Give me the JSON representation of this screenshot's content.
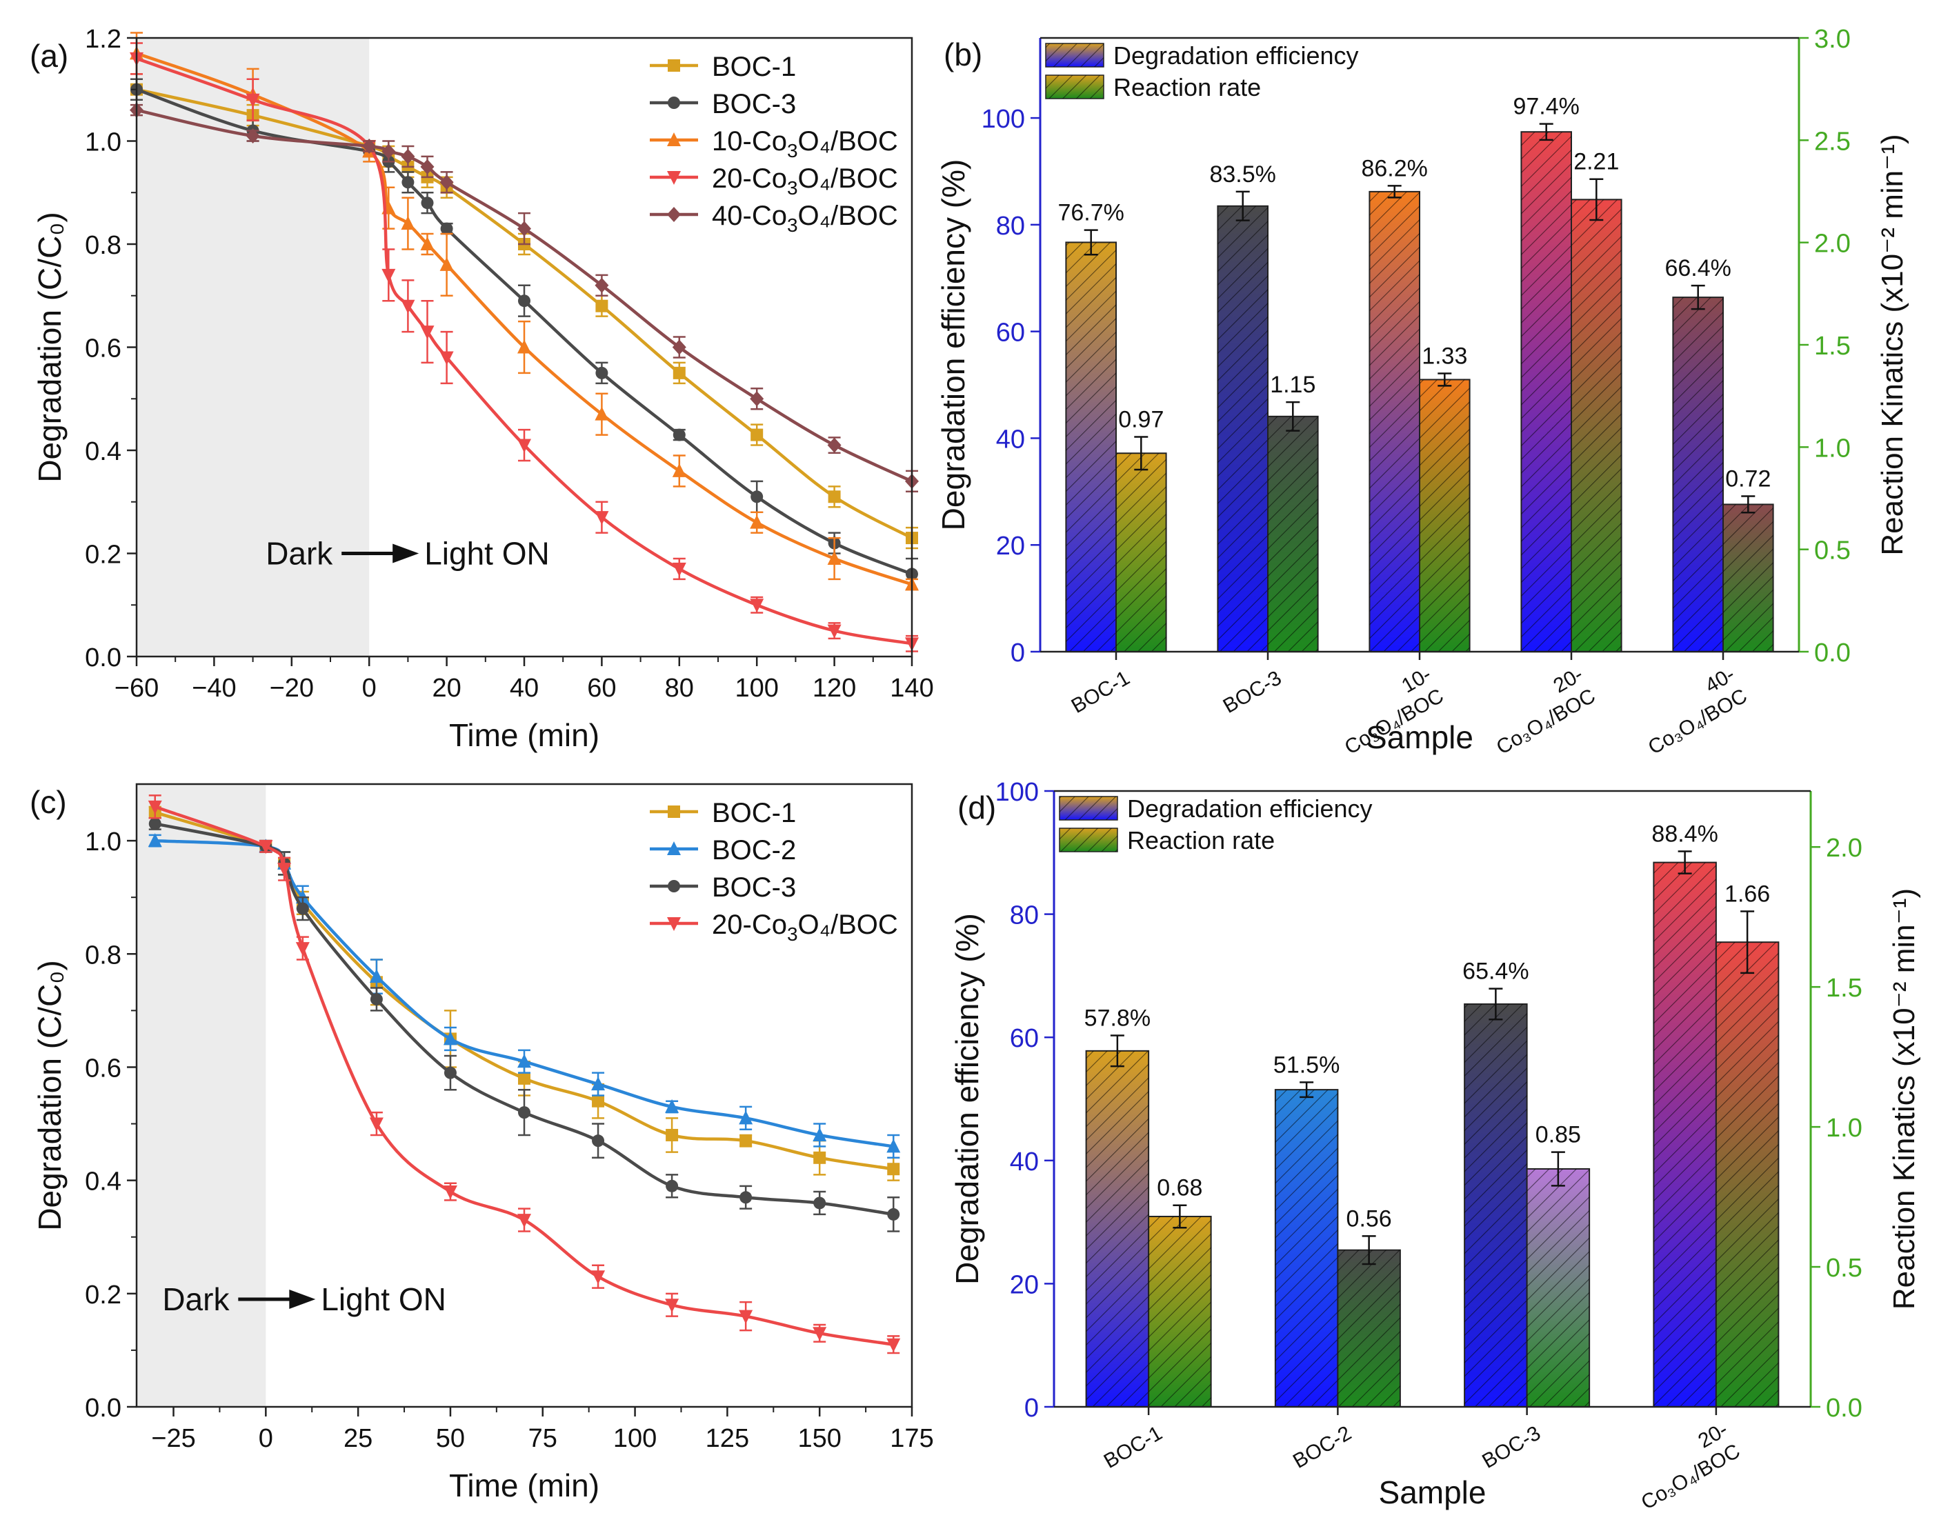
{
  "figure": {
    "panel_labels": [
      "(a)",
      "(b)",
      "(c)",
      "(d)"
    ]
  },
  "colors": {
    "BOC-1": "#d8a020",
    "BOC-2": "#2a86d8",
    "BOC-3": "#4a4a4a",
    "10-Co3O4/BOC": "#f27c1e",
    "20-Co3O4/BOC": "#ec4848",
    "40-Co3O4/BOC": "#8a4a4e",
    "shade": "#ececec",
    "left_axis_b": "#2222cc",
    "right_axis_b": "#44aa22"
  },
  "chart_data": [
    {
      "id": "a",
      "type": "line",
      "title": "",
      "panel_label": "(a)",
      "xlabel": "Time (min)",
      "ylabel": "Degradation (C/C₀)",
      "xlim": [
        -60,
        140
      ],
      "ylim": [
        0.0,
        1.2
      ],
      "xticks": [
        -60,
        -40,
        -20,
        0,
        20,
        40,
        60,
        80,
        100,
        120,
        140
      ],
      "xtick_labels": [
        "−60",
        "−40",
        "−20",
        "0",
        "20",
        "40",
        "60",
        "80",
        "100",
        "120",
        "140"
      ],
      "yticks": [
        0.0,
        0.2,
        0.4,
        0.6,
        0.8,
        1.0,
        1.2
      ],
      "ytick_labels": [
        "0.0",
        "0.2",
        "0.4",
        "0.6",
        "0.8",
        "1.0",
        "1.2"
      ],
      "shaded_region": [
        -60,
        0
      ],
      "annotation": {
        "left": "Dark",
        "right": "Light ON",
        "x": 0,
        "y": 0.2
      },
      "legend": "top-right",
      "series": [
        {
          "name": "BOC-1",
          "label_main": "BOC-1",
          "label_sub": "",
          "label_tail": "",
          "color_key": "BOC-1",
          "marker": "square",
          "x": [
            -60,
            -30,
            0,
            5,
            10,
            15,
            20,
            40,
            60,
            80,
            100,
            120,
            140
          ],
          "y": [
            1.1,
            1.05,
            0.99,
            0.97,
            0.95,
            0.93,
            0.91,
            0.8,
            0.68,
            0.55,
            0.43,
            0.31,
            0.23
          ],
          "err": [
            0.02,
            0.02,
            0.01,
            0.02,
            0.02,
            0.02,
            0.02,
            0.02,
            0.02,
            0.02,
            0.02,
            0.02,
            0.02
          ]
        },
        {
          "name": "BOC-3",
          "label_main": "BOC-3",
          "label_sub": "",
          "label_tail": "",
          "color_key": "BOC-3",
          "marker": "circle",
          "x": [
            -60,
            -30,
            0,
            5,
            10,
            15,
            20,
            40,
            60,
            80,
            100,
            120,
            140
          ],
          "y": [
            1.1,
            1.02,
            0.98,
            0.96,
            0.92,
            0.88,
            0.83,
            0.69,
            0.55,
            0.43,
            0.31,
            0.22,
            0.16
          ],
          "err": [
            0.02,
            0.02,
            0.01,
            0.02,
            0.02,
            0.02,
            0.01,
            0.03,
            0.02,
            0.01,
            0.03,
            0.02,
            0.03
          ]
        },
        {
          "name": "10-Co3O4/BOC",
          "label_main": "10-Co",
          "label_sub": "3",
          "label_tail": "O₄/BOC",
          "color_key": "10-Co3O4/BOC",
          "marker": "triangle-up",
          "x": [
            -60,
            -30,
            0,
            5,
            10,
            15,
            20,
            40,
            60,
            80,
            100,
            120,
            140
          ],
          "y": [
            1.17,
            1.09,
            0.98,
            0.87,
            0.84,
            0.8,
            0.76,
            0.6,
            0.47,
            0.36,
            0.26,
            0.19,
            0.14
          ],
          "err": [
            0.04,
            0.05,
            0.02,
            0.04,
            0.05,
            0.02,
            0.06,
            0.05,
            0.04,
            0.03,
            0.02,
            0.04,
            0.01
          ]
        },
        {
          "name": "20-Co3O4/BOC",
          "label_main": "20-Co",
          "label_sub": "3",
          "label_tail": "O₄/BOC",
          "color_key": "20-Co3O4/BOC",
          "marker": "triangle-down",
          "x": [
            -60,
            -30,
            0,
            5,
            10,
            15,
            20,
            40,
            60,
            80,
            100,
            120,
            140
          ],
          "y": [
            1.16,
            1.08,
            0.99,
            0.74,
            0.68,
            0.63,
            0.58,
            0.41,
            0.27,
            0.17,
            0.1,
            0.05,
            0.025
          ],
          "err": [
            0.03,
            0.04,
            0.01,
            0.05,
            0.05,
            0.06,
            0.05,
            0.03,
            0.03,
            0.02,
            0.015,
            0.015,
            0.015
          ]
        },
        {
          "name": "40-Co3O4/BOC",
          "label_main": "40-Co",
          "label_sub": "3",
          "label_tail": "O₄/BOC",
          "color_key": "40-Co3O4/BOC",
          "marker": "diamond",
          "x": [
            -60,
            -30,
            0,
            5,
            10,
            15,
            20,
            40,
            60,
            80,
            100,
            120,
            140
          ],
          "y": [
            1.06,
            1.01,
            0.99,
            0.98,
            0.97,
            0.95,
            0.92,
            0.83,
            0.72,
            0.6,
            0.5,
            0.41,
            0.34
          ],
          "err": [
            0.01,
            0.01,
            0.01,
            0.02,
            0.02,
            0.02,
            0.02,
            0.03,
            0.02,
            0.02,
            0.02,
            0.015,
            0.02
          ]
        }
      ]
    },
    {
      "id": "b",
      "type": "bar",
      "title": "",
      "panel_label": "(b)",
      "xlabel": "Sample",
      "ylabel": "Degradation efficiency (%)",
      "ylabel2": "Reaction Kinatics (x10⁻² min⁻¹)",
      "ylim": [
        0,
        115
      ],
      "yticks": [
        0,
        20,
        40,
        60,
        80,
        100
      ],
      "ylim2": [
        0,
        3.0
      ],
      "yticks2": [
        0.0,
        0.5,
        1.0,
        1.5,
        2.0,
        2.5,
        3.0
      ],
      "ytick2_labels": [
        "0.0",
        "0.5",
        "1.0",
        "1.5",
        "2.0",
        "2.5",
        "3.0"
      ],
      "legend": "top-left",
      "legend_entries": [
        "Degradation efficiency",
        "Reaction rate"
      ],
      "categories": [
        {
          "line1": "BOC-1",
          "line2": ""
        },
        {
          "line1": "BOC-3",
          "line2": ""
        },
        {
          "line1": "10-",
          "line2": "Co₃O₄/BOC"
        },
        {
          "line1": "20-",
          "line2": "Co₃O₄/BOC"
        },
        {
          "line1": "40-",
          "line2": "Co₃O₄/BOC"
        }
      ],
      "series": [
        {
          "name": "Degradation efficiency",
          "axis": "left",
          "values": [
            76.7,
            83.5,
            86.2,
            97.4,
            66.4
          ],
          "errors": [
            2.3,
            2.7,
            1.1,
            1.5,
            2.2
          ],
          "labels": [
            "76.7%",
            "83.5%",
            "86.2%",
            "97.4%",
            "66.4%"
          ],
          "top_colors": [
            "BOC-1",
            "BOC-3",
            "10-Co3O4/BOC",
            "20-Co3O4/BOC",
            "40-Co3O4/BOC"
          ]
        },
        {
          "name": "Reaction rate",
          "axis": "right",
          "values": [
            0.97,
            1.15,
            1.33,
            2.21,
            0.72
          ],
          "errors": [
            0.08,
            0.07,
            0.03,
            0.1,
            0.04
          ],
          "labels": [
            "0.97",
            "1.15",
            "1.33",
            "2.21",
            "0.72"
          ],
          "top_colors": [
            "BOC-1",
            "BOC-3",
            "10-Co3O4/BOC",
            "20-Co3O4/BOC",
            "40-Co3O4/BOC"
          ]
        }
      ]
    },
    {
      "id": "c",
      "type": "line",
      "title": "",
      "panel_label": "(c)",
      "xlabel": "Time (min)",
      "ylabel": "Degradation (C/C₀)",
      "xlim": [
        -35,
        175
      ],
      "ylim": [
        0.0,
        1.1
      ],
      "xticks": [
        -25,
        0,
        25,
        50,
        75,
        100,
        125,
        150,
        175
      ],
      "xtick_labels": [
        "−25",
        "0",
        "25",
        "50",
        "75",
        "100",
        "125",
        "150",
        "175"
      ],
      "yticks": [
        0.0,
        0.2,
        0.4,
        0.6,
        0.8,
        1.0
      ],
      "ytick_labels": [
        "0.0",
        "0.2",
        "0.4",
        "0.6",
        "0.8",
        "1.0"
      ],
      "shaded_region": [
        -35,
        0
      ],
      "annotation": {
        "left": "Dark",
        "right": "Light ON",
        "x": 0,
        "y": 0.19
      },
      "legend": "top-right",
      "series": [
        {
          "name": "BOC-1",
          "label_main": "BOC-1",
          "label_sub": "",
          "label_tail": "",
          "color_key": "BOC-1",
          "marker": "square",
          "x": [
            -30,
            0,
            5,
            10,
            30,
            50,
            70,
            90,
            110,
            130,
            150,
            170
          ],
          "y": [
            1.05,
            0.99,
            0.96,
            0.89,
            0.75,
            0.65,
            0.58,
            0.54,
            0.48,
            0.47,
            0.44,
            0.42
          ],
          "err": [
            0.01,
            0.01,
            0.02,
            0.02,
            0.04,
            0.05,
            0.03,
            0.03,
            0.03,
            0.01,
            0.03,
            0.02
          ]
        },
        {
          "name": "BOC-2",
          "label_main": "BOC-2",
          "label_sub": "",
          "label_tail": "",
          "color_key": "BOC-2",
          "marker": "triangle-up",
          "x": [
            -30,
            0,
            5,
            10,
            30,
            50,
            70,
            90,
            110,
            130,
            150,
            170
          ],
          "y": [
            1.0,
            0.99,
            0.96,
            0.9,
            0.76,
            0.65,
            0.61,
            0.57,
            0.53,
            0.51,
            0.48,
            0.46
          ],
          "err": [
            0.01,
            0.01,
            0.02,
            0.02,
            0.03,
            0.02,
            0.02,
            0.02,
            0.01,
            0.02,
            0.02,
            0.02
          ]
        },
        {
          "name": "BOC-3",
          "label_main": "BOC-3",
          "label_sub": "",
          "label_tail": "",
          "color_key": "BOC-3",
          "marker": "circle",
          "x": [
            -30,
            0,
            5,
            10,
            30,
            50,
            70,
            90,
            110,
            130,
            150,
            170
          ],
          "y": [
            1.03,
            0.99,
            0.96,
            0.88,
            0.72,
            0.59,
            0.52,
            0.47,
            0.39,
            0.37,
            0.36,
            0.34
          ],
          "err": [
            0.01,
            0.01,
            0.02,
            0.02,
            0.02,
            0.03,
            0.04,
            0.03,
            0.02,
            0.02,
            0.02,
            0.03
          ]
        },
        {
          "name": "20-Co3O4/BOC",
          "label_main": "20-Co",
          "label_sub": "3",
          "label_tail": "O₄/BOC",
          "color_key": "20-Co3O4/BOC",
          "marker": "triangle-down",
          "x": [
            -30,
            0,
            5,
            10,
            30,
            50,
            70,
            90,
            110,
            130,
            150,
            170
          ],
          "y": [
            1.06,
            0.99,
            0.95,
            0.81,
            0.5,
            0.38,
            0.33,
            0.23,
            0.18,
            0.16,
            0.13,
            0.11
          ],
          "err": [
            0.02,
            0.01,
            0.02,
            0.02,
            0.02,
            0.015,
            0.02,
            0.02,
            0.02,
            0.025,
            0.015,
            0.015
          ]
        }
      ]
    },
    {
      "id": "d",
      "type": "bar",
      "title": "",
      "panel_label": "(d)",
      "xlabel": "Sample",
      "ylabel": "Degradation efficiency (%)",
      "ylabel2": "Reaction Kinatics (x10⁻² min⁻¹)",
      "ylim": [
        0,
        100
      ],
      "yticks": [
        0,
        20,
        40,
        60,
        80,
        100
      ],
      "ylim2": [
        0,
        2.2
      ],
      "yticks2": [
        0.0,
        0.5,
        1.0,
        1.5,
        2.0
      ],
      "ytick2_labels": [
        "0.0",
        "0.5",
        "1.0",
        "1.5",
        "2.0"
      ],
      "legend": "top-left",
      "legend_entries": [
        "Degradation efficiency",
        "Reaction rate"
      ],
      "categories": [
        {
          "line1": "BOC-1",
          "line2": ""
        },
        {
          "line1": "BOC-2",
          "line2": ""
        },
        {
          "line1": "BOC-3",
          "line2": ""
        },
        {
          "line1": "20-",
          "line2": "Co₃O₄/BOC"
        }
      ],
      "series": [
        {
          "name": "Degradation efficiency",
          "axis": "left",
          "values": [
            57.8,
            51.5,
            65.4,
            88.4
          ],
          "errors": [
            2.5,
            1.2,
            2.5,
            1.8
          ],
          "labels": [
            "57.8%",
            "51.5%",
            "65.4%",
            "88.4%"
          ],
          "top_colors": [
            "BOC-1",
            "BOC-2",
            "BOC-3",
            "20-Co3O4/BOC"
          ]
        },
        {
          "name": "Reaction rate",
          "axis": "right",
          "values": [
            0.68,
            0.56,
            0.85,
            1.66
          ],
          "errors": [
            0.04,
            0.05,
            0.06,
            0.11
          ],
          "labels": [
            "0.68",
            "0.56",
            "0.85",
            "1.66"
          ],
          "top_colors": [
            "BOC-1",
            "BOC-3",
            "#b77ad8",
            "20-Co3O4/BOC"
          ]
        }
      ]
    }
  ]
}
